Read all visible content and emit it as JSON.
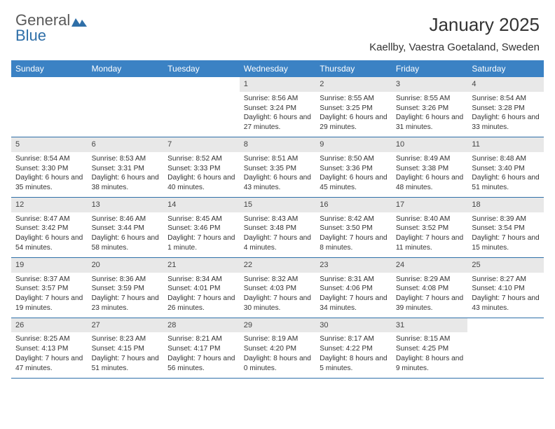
{
  "logo": {
    "text_general": "General",
    "text_blue": "Blue"
  },
  "header": {
    "month_title": "January 2025",
    "location": "Kaellby, Vaestra Goetaland, Sweden"
  },
  "colors": {
    "header_bg": "#3b82c4",
    "header_text": "#ffffff",
    "daynum_bg": "#e8e8e8",
    "week_border": "#2f6fa8",
    "body_text": "#333333",
    "logo_gray": "#5a5a5a",
    "logo_blue": "#2f6fa8",
    "page_bg": "#ffffff"
  },
  "day_labels": [
    "Sunday",
    "Monday",
    "Tuesday",
    "Wednesday",
    "Thursday",
    "Friday",
    "Saturday"
  ],
  "weeks": [
    [
      {
        "day": "",
        "rise": "",
        "set": "",
        "light": ""
      },
      {
        "day": "",
        "rise": "",
        "set": "",
        "light": ""
      },
      {
        "day": "",
        "rise": "",
        "set": "",
        "light": ""
      },
      {
        "day": "1",
        "rise": "Sunrise: 8:56 AM",
        "set": "Sunset: 3:24 PM",
        "light": "Daylight: 6 hours and 27 minutes."
      },
      {
        "day": "2",
        "rise": "Sunrise: 8:55 AM",
        "set": "Sunset: 3:25 PM",
        "light": "Daylight: 6 hours and 29 minutes."
      },
      {
        "day": "3",
        "rise": "Sunrise: 8:55 AM",
        "set": "Sunset: 3:26 PM",
        "light": "Daylight: 6 hours and 31 minutes."
      },
      {
        "day": "4",
        "rise": "Sunrise: 8:54 AM",
        "set": "Sunset: 3:28 PM",
        "light": "Daylight: 6 hours and 33 minutes."
      }
    ],
    [
      {
        "day": "5",
        "rise": "Sunrise: 8:54 AM",
        "set": "Sunset: 3:30 PM",
        "light": "Daylight: 6 hours and 35 minutes."
      },
      {
        "day": "6",
        "rise": "Sunrise: 8:53 AM",
        "set": "Sunset: 3:31 PM",
        "light": "Daylight: 6 hours and 38 minutes."
      },
      {
        "day": "7",
        "rise": "Sunrise: 8:52 AM",
        "set": "Sunset: 3:33 PM",
        "light": "Daylight: 6 hours and 40 minutes."
      },
      {
        "day": "8",
        "rise": "Sunrise: 8:51 AM",
        "set": "Sunset: 3:35 PM",
        "light": "Daylight: 6 hours and 43 minutes."
      },
      {
        "day": "9",
        "rise": "Sunrise: 8:50 AM",
        "set": "Sunset: 3:36 PM",
        "light": "Daylight: 6 hours and 45 minutes."
      },
      {
        "day": "10",
        "rise": "Sunrise: 8:49 AM",
        "set": "Sunset: 3:38 PM",
        "light": "Daylight: 6 hours and 48 minutes."
      },
      {
        "day": "11",
        "rise": "Sunrise: 8:48 AM",
        "set": "Sunset: 3:40 PM",
        "light": "Daylight: 6 hours and 51 minutes."
      }
    ],
    [
      {
        "day": "12",
        "rise": "Sunrise: 8:47 AM",
        "set": "Sunset: 3:42 PM",
        "light": "Daylight: 6 hours and 54 minutes."
      },
      {
        "day": "13",
        "rise": "Sunrise: 8:46 AM",
        "set": "Sunset: 3:44 PM",
        "light": "Daylight: 6 hours and 58 minutes."
      },
      {
        "day": "14",
        "rise": "Sunrise: 8:45 AM",
        "set": "Sunset: 3:46 PM",
        "light": "Daylight: 7 hours and 1 minute."
      },
      {
        "day": "15",
        "rise": "Sunrise: 8:43 AM",
        "set": "Sunset: 3:48 PM",
        "light": "Daylight: 7 hours and 4 minutes."
      },
      {
        "day": "16",
        "rise": "Sunrise: 8:42 AM",
        "set": "Sunset: 3:50 PM",
        "light": "Daylight: 7 hours and 8 minutes."
      },
      {
        "day": "17",
        "rise": "Sunrise: 8:40 AM",
        "set": "Sunset: 3:52 PM",
        "light": "Daylight: 7 hours and 11 minutes."
      },
      {
        "day": "18",
        "rise": "Sunrise: 8:39 AM",
        "set": "Sunset: 3:54 PM",
        "light": "Daylight: 7 hours and 15 minutes."
      }
    ],
    [
      {
        "day": "19",
        "rise": "Sunrise: 8:37 AM",
        "set": "Sunset: 3:57 PM",
        "light": "Daylight: 7 hours and 19 minutes."
      },
      {
        "day": "20",
        "rise": "Sunrise: 8:36 AM",
        "set": "Sunset: 3:59 PM",
        "light": "Daylight: 7 hours and 23 minutes."
      },
      {
        "day": "21",
        "rise": "Sunrise: 8:34 AM",
        "set": "Sunset: 4:01 PM",
        "light": "Daylight: 7 hours and 26 minutes."
      },
      {
        "day": "22",
        "rise": "Sunrise: 8:32 AM",
        "set": "Sunset: 4:03 PM",
        "light": "Daylight: 7 hours and 30 minutes."
      },
      {
        "day": "23",
        "rise": "Sunrise: 8:31 AM",
        "set": "Sunset: 4:06 PM",
        "light": "Daylight: 7 hours and 34 minutes."
      },
      {
        "day": "24",
        "rise": "Sunrise: 8:29 AM",
        "set": "Sunset: 4:08 PM",
        "light": "Daylight: 7 hours and 39 minutes."
      },
      {
        "day": "25",
        "rise": "Sunrise: 8:27 AM",
        "set": "Sunset: 4:10 PM",
        "light": "Daylight: 7 hours and 43 minutes."
      }
    ],
    [
      {
        "day": "26",
        "rise": "Sunrise: 8:25 AM",
        "set": "Sunset: 4:13 PM",
        "light": "Daylight: 7 hours and 47 minutes."
      },
      {
        "day": "27",
        "rise": "Sunrise: 8:23 AM",
        "set": "Sunset: 4:15 PM",
        "light": "Daylight: 7 hours and 51 minutes."
      },
      {
        "day": "28",
        "rise": "Sunrise: 8:21 AM",
        "set": "Sunset: 4:17 PM",
        "light": "Daylight: 7 hours and 56 minutes."
      },
      {
        "day": "29",
        "rise": "Sunrise: 8:19 AM",
        "set": "Sunset: 4:20 PM",
        "light": "Daylight: 8 hours and 0 minutes."
      },
      {
        "day": "30",
        "rise": "Sunrise: 8:17 AM",
        "set": "Sunset: 4:22 PM",
        "light": "Daylight: 8 hours and 5 minutes."
      },
      {
        "day": "31",
        "rise": "Sunrise: 8:15 AM",
        "set": "Sunset: 4:25 PM",
        "light": "Daylight: 8 hours and 9 minutes."
      },
      {
        "day": "",
        "rise": "",
        "set": "",
        "light": ""
      }
    ]
  ]
}
